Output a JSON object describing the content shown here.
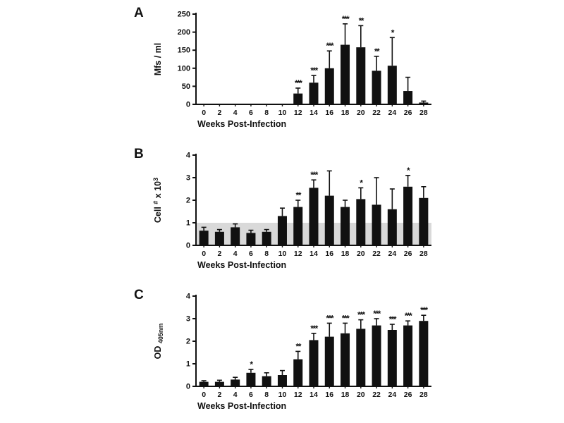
{
  "figure": {
    "background": "#ffffff",
    "bar_color": "#111111",
    "axis_color": "#111111",
    "band_color": "#d9d9d9"
  },
  "chart_data": [
    {
      "panel": "A",
      "type": "bar",
      "xlabel": "Weeks Post-Infection",
      "ylabel": "Mfs / ml",
      "ylabel_parts": [
        {
          "t": "Mfs / ml"
        }
      ],
      "ylim": [
        0,
        250
      ],
      "yticks": [
        0,
        50,
        100,
        150,
        200,
        250
      ],
      "categories": [
        "0",
        "2",
        "4",
        "6",
        "8",
        "10",
        "12",
        "14",
        "16",
        "18",
        "20",
        "22",
        "24",
        "26",
        "28"
      ],
      "values": [
        0,
        0,
        0,
        0,
        0,
        0,
        30,
        60,
        100,
        165,
        158,
        93,
        107,
        37,
        5
      ],
      "errors": [
        0,
        0,
        0,
        0,
        0,
        0,
        15,
        20,
        48,
        58,
        60,
        40,
        78,
        38,
        4
      ],
      "significance": [
        "",
        "",
        "",
        "",
        "",
        "",
        "***",
        "***",
        "***",
        "***",
        "**",
        "**",
        "*",
        "",
        ""
      ]
    },
    {
      "panel": "B",
      "type": "bar",
      "xlabel": "Weeks Post-Infection",
      "ylabel": "Cell # x 10^3",
      "ylabel_parts": [
        {
          "t": "Cell "
        },
        {
          "t": "#",
          "sup": true
        },
        {
          "t": " x 10"
        },
        {
          "t": "3",
          "sup": true
        }
      ],
      "ylim": [
        0,
        4
      ],
      "yticks": [
        0,
        1,
        2,
        3,
        4
      ],
      "band": {
        "from": 0,
        "to": 1,
        "color": "#d9d9d9"
      },
      "categories": [
        "0",
        "2",
        "4",
        "6",
        "8",
        "10",
        "12",
        "14",
        "16",
        "18",
        "20",
        "22",
        "24",
        "26",
        "28"
      ],
      "values": [
        0.65,
        0.6,
        0.8,
        0.55,
        0.6,
        1.3,
        1.7,
        2.55,
        2.2,
        1.7,
        2.05,
        1.8,
        1.6,
        2.6,
        2.1
      ],
      "errors": [
        0.15,
        0.1,
        0.15,
        0.12,
        0.1,
        0.35,
        0.3,
        0.35,
        1.1,
        0.3,
        0.5,
        1.2,
        0.9,
        0.5,
        0.5
      ],
      "significance": [
        "",
        "",
        "",
        "",
        "",
        "",
        "**",
        "***",
        "",
        "",
        "*",
        "",
        "",
        "*",
        ""
      ]
    },
    {
      "panel": "C",
      "type": "bar",
      "xlabel": "Weeks Post-Infection",
      "ylabel": "OD 405nm",
      "ylabel_parts": [
        {
          "t": "OD "
        },
        {
          "t": "405nm",
          "sub": true
        }
      ],
      "ylim": [
        0,
        4
      ],
      "yticks": [
        0,
        1,
        2,
        3,
        4
      ],
      "categories": [
        "0",
        "2",
        "4",
        "6",
        "8",
        "10",
        "12",
        "14",
        "16",
        "18",
        "20",
        "22",
        "24",
        "26",
        "28"
      ],
      "values": [
        0.2,
        0.2,
        0.3,
        0.6,
        0.45,
        0.5,
        1.2,
        2.05,
        2.2,
        2.35,
        2.55,
        2.7,
        2.5,
        2.7,
        2.9
      ],
      "errors": [
        0.05,
        0.07,
        0.1,
        0.15,
        0.15,
        0.2,
        0.35,
        0.3,
        0.6,
        0.45,
        0.4,
        0.3,
        0.25,
        0.2,
        0.25
      ],
      "significance": [
        "",
        "",
        "",
        "*",
        "",
        "",
        "**",
        "***",
        "***",
        "***",
        "***",
        "***",
        "***",
        "***",
        "***"
      ]
    }
  ]
}
